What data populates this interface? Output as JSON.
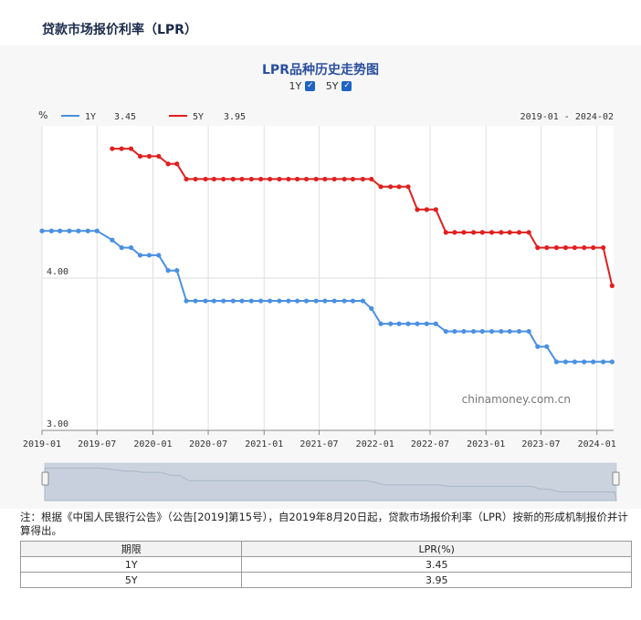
{
  "page_title": "贷款市场报价利率（LPR）",
  "chart_data": {
    "type": "line",
    "title": "LPR品种历史走势图",
    "ylabel": "%",
    "ylim": [
      3.0,
      5.0
    ],
    "y_ticks": [
      "3.00",
      "4.00"
    ],
    "date_range": "2019-01 - 2024-02",
    "watermark": "chinamoney.com.cn",
    "x_ticks": [
      "2019-01",
      "2019-07",
      "2020-01",
      "2020-07",
      "2021-01",
      "2021-07",
      "2022-01",
      "2022-07",
      "2023-01",
      "2023-07",
      "2024-01"
    ],
    "grid": true,
    "legend_position": "top-left",
    "toggles": [
      {
        "label": "1Y",
        "checked": true
      },
      {
        "label": "5Y",
        "checked": true
      }
    ],
    "series": [
      {
        "name": "1Y",
        "latest": "3.45",
        "color": "#4a90e2",
        "values": [
          [
            "2019-01-01",
            4.31
          ],
          [
            "2019-02-01",
            4.31
          ],
          [
            "2019-03-01",
            4.31
          ],
          [
            "2019-04-01",
            4.31
          ],
          [
            "2019-05-01",
            4.31
          ],
          [
            "2019-06-01",
            4.31
          ],
          [
            "2019-07-01",
            4.31
          ],
          [
            "2019-08-20",
            4.25
          ],
          [
            "2019-09-20",
            4.2
          ],
          [
            "2019-10-21",
            4.2
          ],
          [
            "2019-11-20",
            4.15
          ],
          [
            "2019-12-20",
            4.15
          ],
          [
            "2020-01-20",
            4.15
          ],
          [
            "2020-02-20",
            4.05
          ],
          [
            "2020-03-20",
            4.05
          ],
          [
            "2020-04-20",
            3.85
          ],
          [
            "2020-05-20",
            3.85
          ],
          [
            "2020-06-22",
            3.85
          ],
          [
            "2020-07-20",
            3.85
          ],
          [
            "2020-08-20",
            3.85
          ],
          [
            "2020-09-21",
            3.85
          ],
          [
            "2020-10-20",
            3.85
          ],
          [
            "2020-11-20",
            3.85
          ],
          [
            "2020-12-21",
            3.85
          ],
          [
            "2021-01-20",
            3.85
          ],
          [
            "2021-02-20",
            3.85
          ],
          [
            "2021-03-22",
            3.85
          ],
          [
            "2021-04-20",
            3.85
          ],
          [
            "2021-05-20",
            3.85
          ],
          [
            "2021-06-21",
            3.85
          ],
          [
            "2021-07-20",
            3.85
          ],
          [
            "2021-08-20",
            3.85
          ],
          [
            "2021-09-22",
            3.85
          ],
          [
            "2021-10-20",
            3.85
          ],
          [
            "2021-11-22",
            3.85
          ],
          [
            "2021-12-20",
            3.8
          ],
          [
            "2022-01-20",
            3.7
          ],
          [
            "2022-02-21",
            3.7
          ],
          [
            "2022-03-21",
            3.7
          ],
          [
            "2022-04-20",
            3.7
          ],
          [
            "2022-05-20",
            3.7
          ],
          [
            "2022-06-20",
            3.7
          ],
          [
            "2022-07-20",
            3.7
          ],
          [
            "2022-08-22",
            3.65
          ],
          [
            "2022-09-20",
            3.65
          ],
          [
            "2022-10-20",
            3.65
          ],
          [
            "2022-11-21",
            3.65
          ],
          [
            "2022-12-20",
            3.65
          ],
          [
            "2023-01-20",
            3.65
          ],
          [
            "2023-02-20",
            3.65
          ],
          [
            "2023-03-20",
            3.65
          ],
          [
            "2023-04-20",
            3.65
          ],
          [
            "2023-05-22",
            3.65
          ],
          [
            "2023-06-20",
            3.55
          ],
          [
            "2023-07-20",
            3.55
          ],
          [
            "2023-08-21",
            3.45
          ],
          [
            "2023-09-20",
            3.45
          ],
          [
            "2023-10-20",
            3.45
          ],
          [
            "2023-11-20",
            3.45
          ],
          [
            "2023-12-20",
            3.45
          ],
          [
            "2024-01-22",
            3.45
          ],
          [
            "2024-02-20",
            3.45
          ]
        ]
      },
      {
        "name": "5Y",
        "latest": "3.95",
        "color": "#e02020",
        "values": [
          [
            "2019-08-20",
            4.85
          ],
          [
            "2019-09-20",
            4.85
          ],
          [
            "2019-10-21",
            4.85
          ],
          [
            "2019-11-20",
            4.8
          ],
          [
            "2019-12-20",
            4.8
          ],
          [
            "2020-01-20",
            4.8
          ],
          [
            "2020-02-20",
            4.75
          ],
          [
            "2020-03-20",
            4.75
          ],
          [
            "2020-04-20",
            4.65
          ],
          [
            "2020-05-20",
            4.65
          ],
          [
            "2020-06-22",
            4.65
          ],
          [
            "2020-07-20",
            4.65
          ],
          [
            "2020-08-20",
            4.65
          ],
          [
            "2020-09-21",
            4.65
          ],
          [
            "2020-10-20",
            4.65
          ],
          [
            "2020-11-20",
            4.65
          ],
          [
            "2020-12-21",
            4.65
          ],
          [
            "2021-01-20",
            4.65
          ],
          [
            "2021-02-20",
            4.65
          ],
          [
            "2021-03-22",
            4.65
          ],
          [
            "2021-04-20",
            4.65
          ],
          [
            "2021-05-20",
            4.65
          ],
          [
            "2021-06-21",
            4.65
          ],
          [
            "2021-07-20",
            4.65
          ],
          [
            "2021-08-20",
            4.65
          ],
          [
            "2021-09-22",
            4.65
          ],
          [
            "2021-10-20",
            4.65
          ],
          [
            "2021-11-22",
            4.65
          ],
          [
            "2021-12-20",
            4.65
          ],
          [
            "2022-01-20",
            4.6
          ],
          [
            "2022-02-21",
            4.6
          ],
          [
            "2022-03-21",
            4.6
          ],
          [
            "2022-04-20",
            4.6
          ],
          [
            "2022-05-20",
            4.45
          ],
          [
            "2022-06-20",
            4.45
          ],
          [
            "2022-07-20",
            4.45
          ],
          [
            "2022-08-22",
            4.3
          ],
          [
            "2022-09-20",
            4.3
          ],
          [
            "2022-10-20",
            4.3
          ],
          [
            "2022-11-21",
            4.3
          ],
          [
            "2022-12-20",
            4.3
          ],
          [
            "2023-01-20",
            4.3
          ],
          [
            "2023-02-20",
            4.3
          ],
          [
            "2023-03-20",
            4.3
          ],
          [
            "2023-04-20",
            4.3
          ],
          [
            "2023-05-22",
            4.3
          ],
          [
            "2023-06-20",
            4.2
          ],
          [
            "2023-07-20",
            4.2
          ],
          [
            "2023-08-21",
            4.2
          ],
          [
            "2023-09-20",
            4.2
          ],
          [
            "2023-10-20",
            4.2
          ],
          [
            "2023-11-20",
            4.2
          ],
          [
            "2023-12-20",
            4.2
          ],
          [
            "2024-01-22",
            4.2
          ],
          [
            "2024-02-20",
            3.95
          ]
        ]
      }
    ]
  },
  "note": "注：根据《中国人民银行公告》（公告[2019]第15号），自2019年8月20日起，贷款市场报价利率（LPR）按新的形成机制报价并计算得出。",
  "table": {
    "headers": [
      "期限",
      "LPR(%)"
    ],
    "rows": [
      [
        "1Y",
        "3.45"
      ],
      [
        "5Y",
        "3.95"
      ]
    ]
  }
}
